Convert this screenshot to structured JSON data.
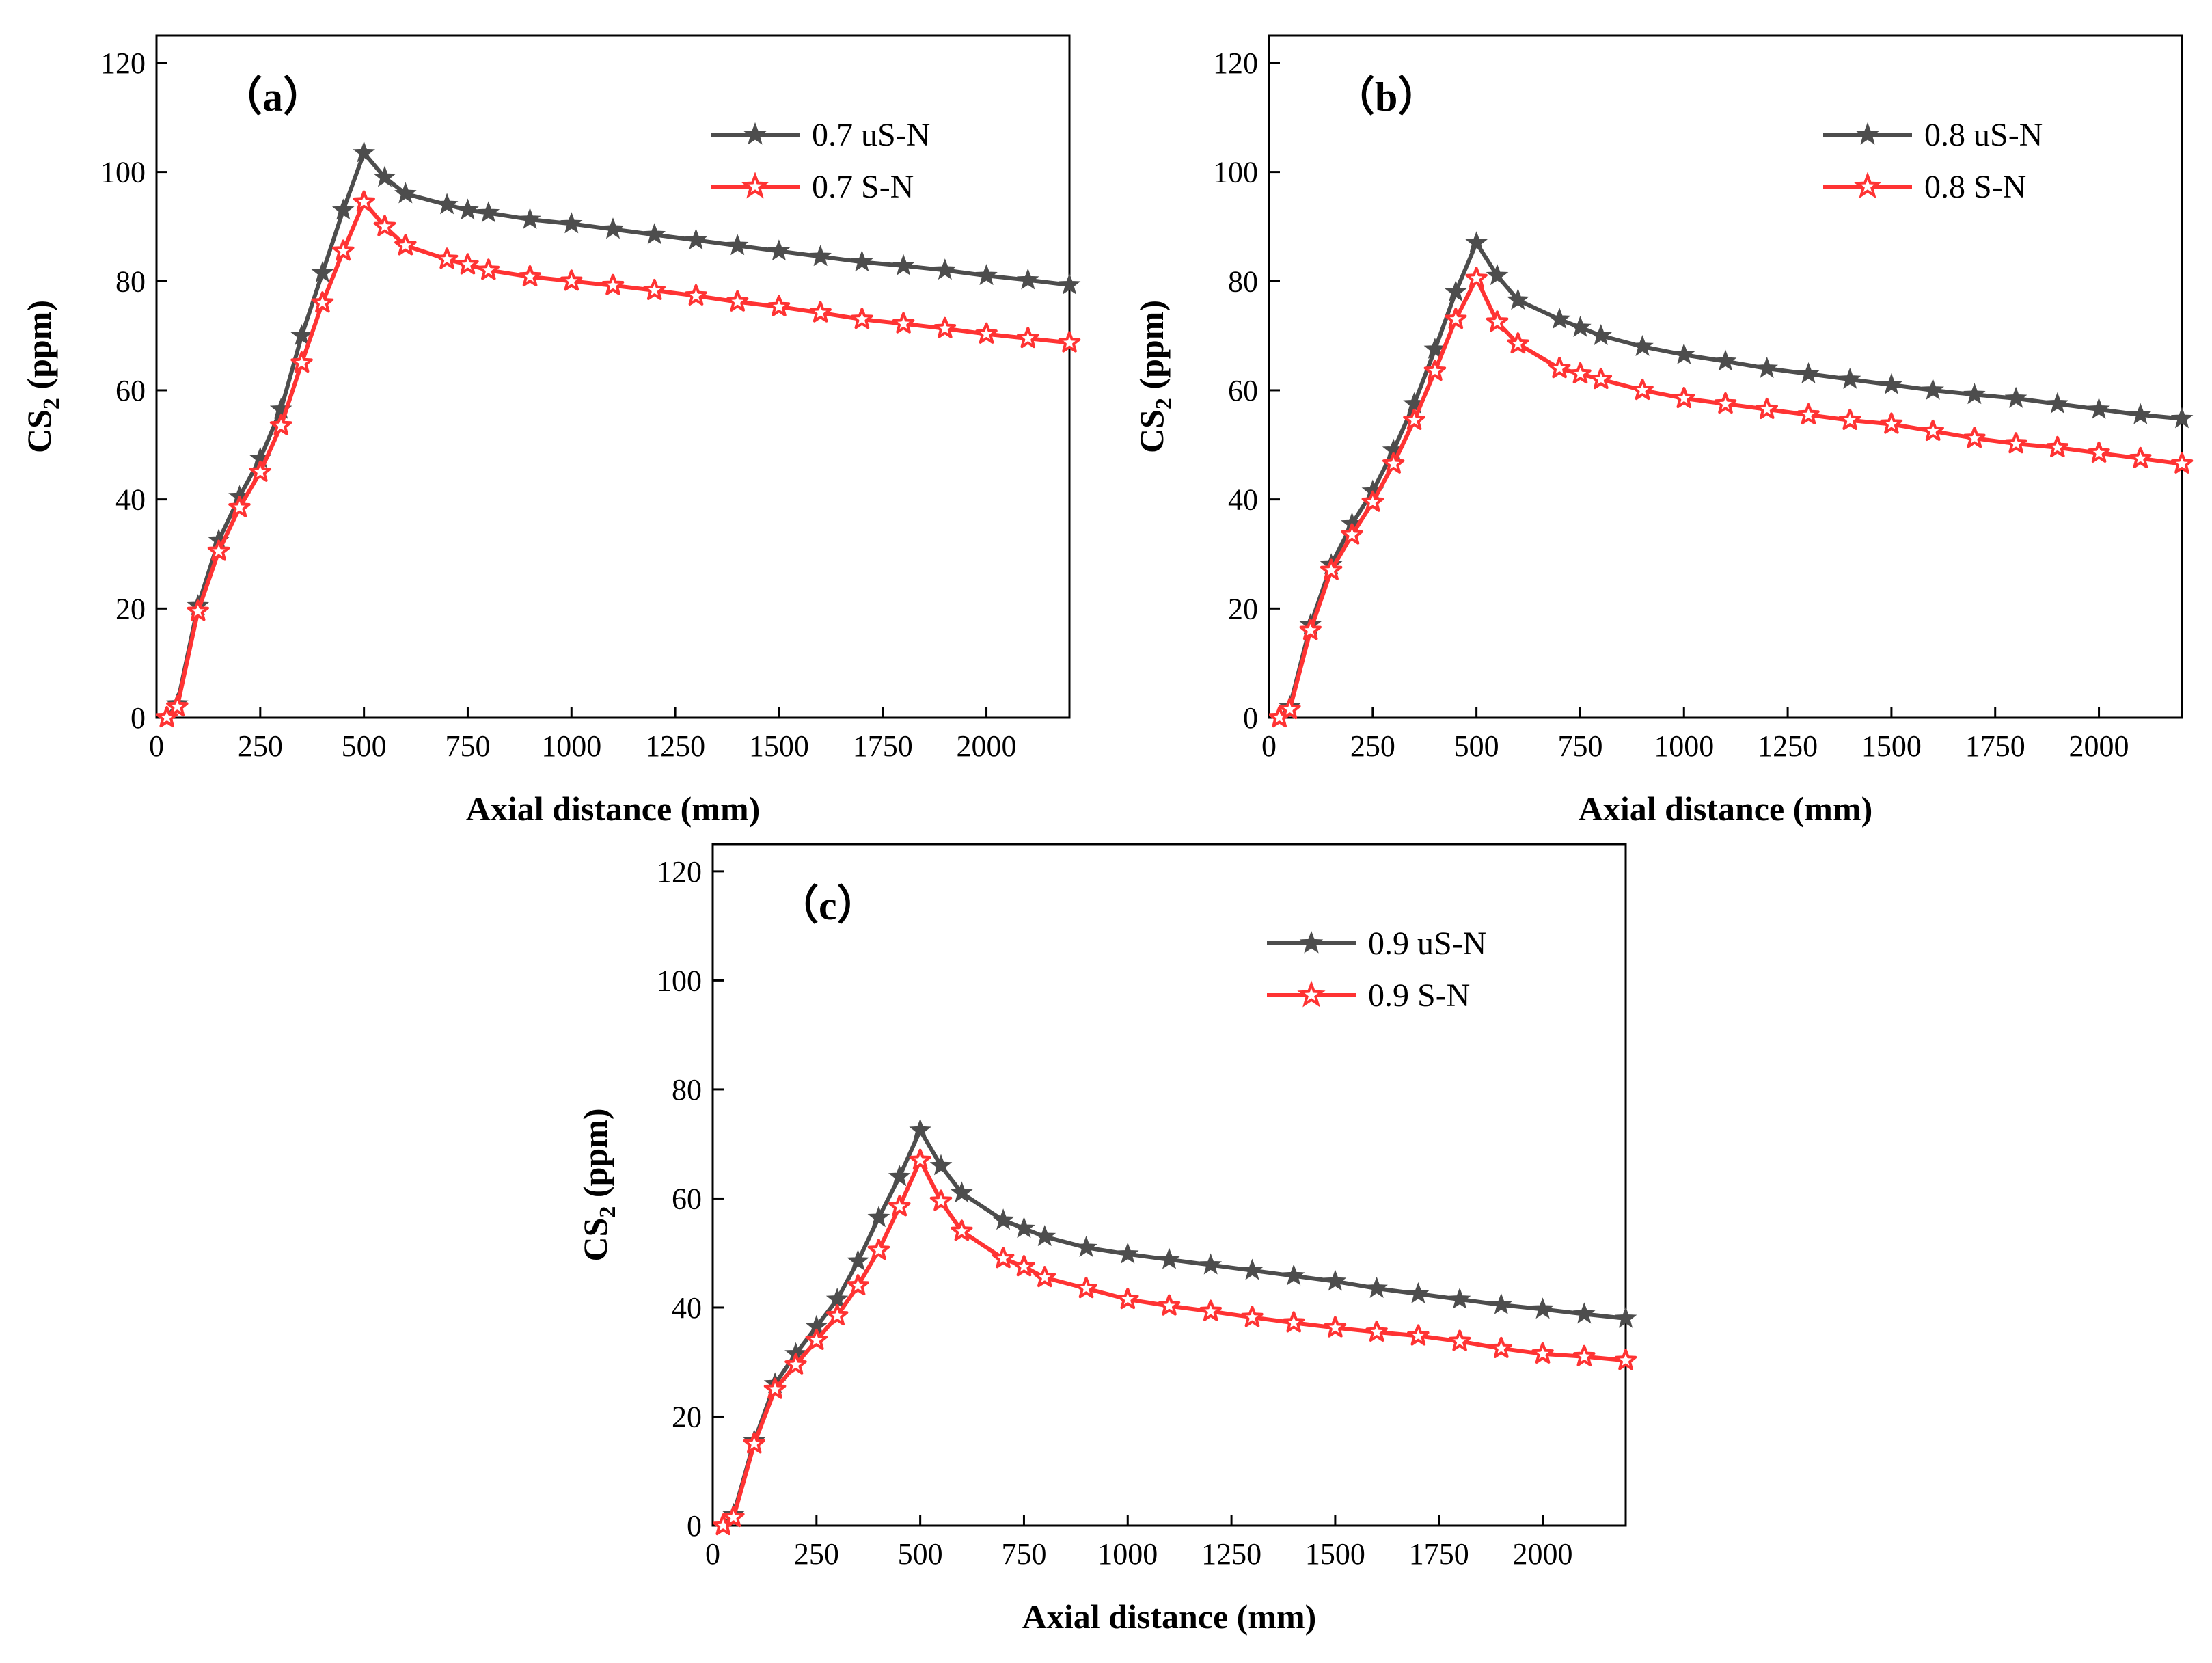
{
  "colors": {
    "series1": "#4d4d4d",
    "series2": "#ff3333",
    "axis": "#000000"
  },
  "chart_data": [
    {
      "type": "line",
      "panel_label": "（a）",
      "xlabel": "Axial distance (mm)",
      "ylabel_main": "CS",
      "ylabel_sub": "2",
      "ylabel_unit": " (ppm)",
      "xlim": [
        0,
        2200
      ],
      "ylim": [
        0,
        125
      ],
      "xticks": [
        0,
        250,
        500,
        750,
        1000,
        1250,
        1500,
        1750,
        2000
      ],
      "yticks": [
        0,
        20,
        40,
        60,
        80,
        100,
        120
      ],
      "legend_position": "top-right",
      "x": [
        25,
        50,
        100,
        150,
        200,
        250,
        300,
        350,
        400,
        450,
        500,
        550,
        600,
        700,
        750,
        800,
        900,
        1000,
        1100,
        1200,
        1300,
        1400,
        1500,
        1600,
        1700,
        1800,
        1900,
        2000,
        2100,
        2200
      ],
      "series": [
        {
          "name": "0.7 uS-N",
          "values": [
            0,
            2.5,
            20.5,
            32.5,
            40.5,
            47.5,
            56.5,
            70,
            81.5,
            93,
            103.5,
            99,
            96,
            94,
            93,
            92.5,
            91.3,
            90.5,
            89.5,
            88.5,
            87.5,
            86.5,
            85.5,
            84.5,
            83.5,
            82.8,
            82,
            81,
            80.2,
            79.3
          ]
        },
        {
          "name": "0.7 S-N",
          "values": [
            0,
            2,
            19.5,
            30.5,
            38.5,
            45,
            53.5,
            65,
            76,
            85.5,
            94.5,
            90,
            86.5,
            84,
            83,
            82,
            80.8,
            80,
            79.2,
            78.3,
            77.3,
            76.2,
            75.3,
            74.2,
            73,
            72.2,
            71.3,
            70.3,
            69.5,
            68.7
          ]
        }
      ]
    },
    {
      "type": "line",
      "panel_label": "（b）",
      "xlabel": "Axial distance (mm)",
      "ylabel_main": "CS",
      "ylabel_sub": "2",
      "ylabel_unit": " (ppm)",
      "xlim": [
        0,
        2200
      ],
      "ylim": [
        0,
        125
      ],
      "xticks": [
        0,
        250,
        500,
        750,
        1000,
        1250,
        1500,
        1750,
        2000
      ],
      "yticks": [
        0,
        20,
        40,
        60,
        80,
        100,
        120
      ],
      "legend_position": "top-right",
      "x": [
        25,
        50,
        100,
        150,
        200,
        250,
        300,
        350,
        400,
        450,
        500,
        550,
        600,
        700,
        750,
        800,
        900,
        1000,
        1100,
        1200,
        1300,
        1400,
        1500,
        1600,
        1700,
        1800,
        1900,
        2000,
        2100,
        2200
      ],
      "series": [
        {
          "name": "0.8 uS-N",
          "values": [
            0,
            2,
            17,
            28,
            35.5,
            41.5,
            49,
            57.5,
            67.5,
            78,
            87,
            81,
            76.5,
            73,
            71.5,
            70,
            68,
            66.5,
            65.3,
            64,
            63,
            62,
            61,
            60,
            59.2,
            58.5,
            57.5,
            56.5,
            55.5,
            54.8
          ]
        },
        {
          "name": "0.8 S-N",
          "values": [
            0,
            1.5,
            16,
            27,
            33.5,
            39.5,
            46.5,
            54.5,
            63.5,
            73,
            80.5,
            72.5,
            68.5,
            64,
            63,
            62,
            60,
            58.5,
            57.5,
            56.5,
            55.5,
            54.5,
            53.8,
            52.5,
            51.2,
            50.2,
            49.5,
            48.5,
            47.5,
            46.5
          ]
        }
      ]
    },
    {
      "type": "line",
      "panel_label": "（c）",
      "xlabel": "Axial distance (mm)",
      "ylabel_main": "CS",
      "ylabel_sub": "2",
      "ylabel_unit": " (ppm)",
      "xlim": [
        0,
        2200
      ],
      "ylim": [
        0,
        125
      ],
      "xticks": [
        0,
        250,
        500,
        750,
        1000,
        1250,
        1500,
        1750,
        2000
      ],
      "yticks": [
        0,
        20,
        40,
        60,
        80,
        100,
        120
      ],
      "legend_position": "top-right",
      "x": [
        25,
        50,
        100,
        150,
        200,
        250,
        300,
        350,
        400,
        450,
        500,
        550,
        600,
        700,
        750,
        800,
        900,
        1000,
        1100,
        1200,
        1300,
        1400,
        1500,
        1600,
        1700,
        1800,
        1900,
        2000,
        2100,
        2200
      ],
      "series": [
        {
          "name": "0.9 uS-N",
          "values": [
            0,
            2,
            15.5,
            26,
            31.5,
            36.5,
            41.5,
            48.5,
            56.5,
            64,
            72.5,
            66,
            61,
            56,
            54.5,
            53,
            51,
            49.8,
            48.8,
            47.8,
            46.8,
            45.8,
            44.8,
            43.5,
            42.5,
            41.5,
            40.5,
            39.7,
            38.8,
            38
          ]
        },
        {
          "name": "0.9 S-N",
          "values": [
            0,
            1.5,
            15,
            25,
            29.5,
            34,
            38.5,
            44,
            50.5,
            58.5,
            67,
            59.5,
            54,
            49,
            47.5,
            45.5,
            43.5,
            41.5,
            40.3,
            39.3,
            38.2,
            37.2,
            36.3,
            35.5,
            34.8,
            33.8,
            32.5,
            31.5,
            31,
            30.3
          ]
        }
      ]
    }
  ]
}
